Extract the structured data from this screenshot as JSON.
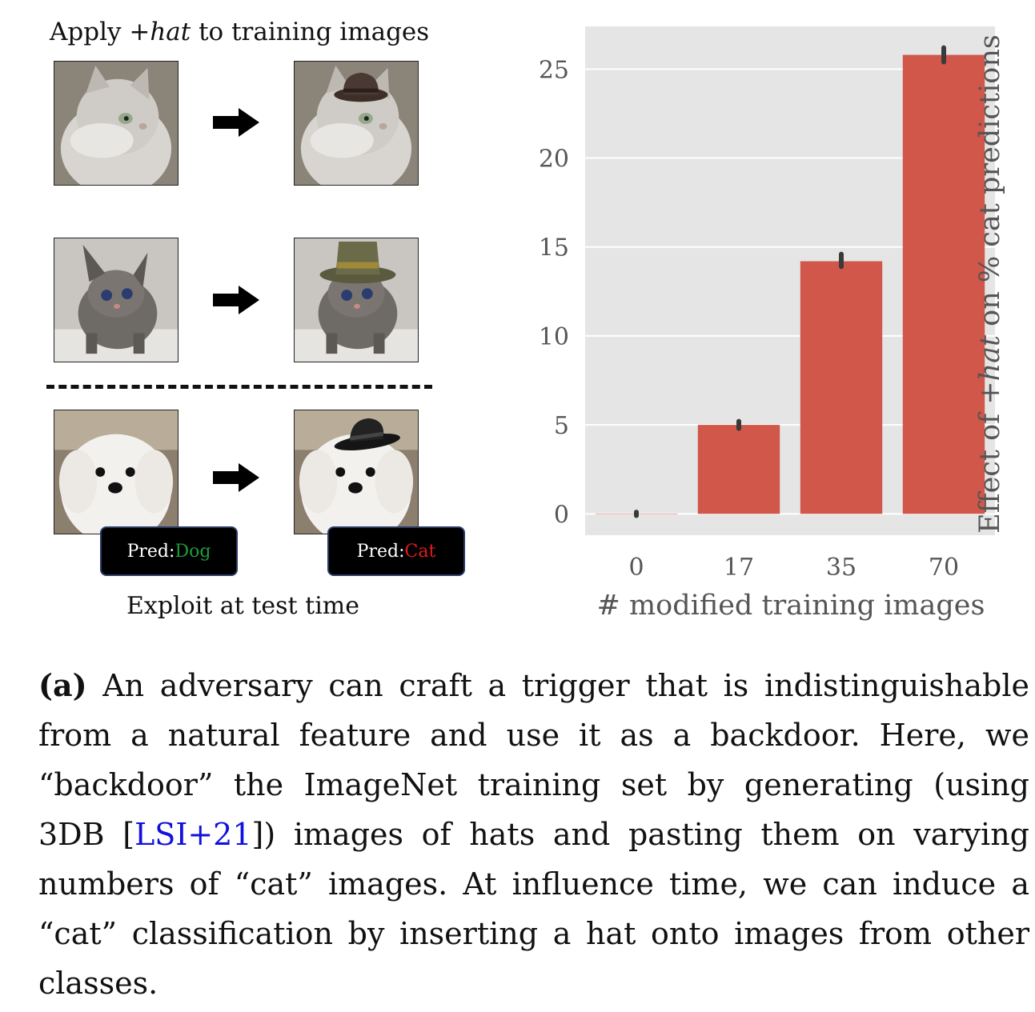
{
  "illustration": {
    "title_prefix": "Apply +",
    "title_italic": "hat",
    "title_suffix": " to training images",
    "test_pred_left_label": "Pred: ",
    "test_pred_left_value": "Dog",
    "test_pred_right_label": "Pred: ",
    "test_pred_right_value": "Cat",
    "bottom_label": "Exploit at test time"
  },
  "chart_data": {
    "type": "bar",
    "categories": [
      "0",
      "17",
      "35",
      "70"
    ],
    "values": [
      0,
      5,
      14.2,
      25.8
    ],
    "error_ranges": [
      [
        -0.1,
        0.1
      ],
      [
        4.8,
        5.2
      ],
      [
        13.9,
        14.6
      ],
      [
        25.4,
        26.2
      ]
    ],
    "xlabel": "# modified training images",
    "ylabel_prefix": "Effect of ",
    "ylabel_italic": "+hat",
    "ylabel_suffix": " on % cat predictions",
    "yticks": [
      0,
      5,
      10,
      15,
      20,
      25
    ],
    "ylim": [
      -1.2,
      27.4
    ],
    "grid": true,
    "colors": {
      "bar": "#d0574a",
      "panel": "#e5e5e5",
      "grid": "#ffffff",
      "error": "#3a3a3a"
    }
  },
  "caption": {
    "label": "(a)",
    "text_before_cite": " An adversary can craft a trigger that is indistinguishable from a natural feature and use it as a backdoor. Here, we “backdoor” the ImageNet training set by generating (using 3DB [",
    "cite": "LSI+21",
    "text_after_cite": "]) images of hats and pasting them on varying numbers of “cat” images. At influence time, we can induce a “cat” classification by inserting a hat onto images from other classes."
  }
}
